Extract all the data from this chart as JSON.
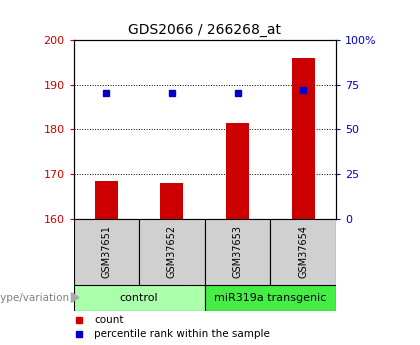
{
  "title": "GDS2066 / 266268_at",
  "samples": [
    "GSM37651",
    "GSM37652",
    "GSM37653",
    "GSM37654"
  ],
  "bar_values": [
    168.5,
    168.0,
    181.5,
    196.0
  ],
  "percentile_values": [
    70,
    70,
    70,
    72
  ],
  "ylim_left": [
    160,
    200
  ],
  "ylim_right": [
    0,
    100
  ],
  "yticks_left": [
    160,
    170,
    180,
    190,
    200
  ],
  "yticks_right": [
    0,
    25,
    50,
    75,
    100
  ],
  "ytick_labels_right": [
    "0",
    "25",
    "50",
    "75",
    "100%"
  ],
  "bar_color": "#cc0000",
  "percentile_color": "#0000cc",
  "bar_width": 0.35,
  "groups": [
    {
      "label": "control",
      "color": "#aaffaa",
      "indices": [
        0,
        1
      ]
    },
    {
      "label": "miR319a transgenic",
      "color": "#44ee44",
      "indices": [
        2,
        3
      ]
    }
  ],
  "genotype_label": "genotype/variation",
  "legend_count_label": "count",
  "legend_pct_label": "percentile rank within the sample",
  "bg_color": "#ffffff",
  "plot_bg": "#ffffff",
  "left_tick_color": "#cc0000",
  "right_tick_color": "#0000cc",
  "title_fontsize": 10,
  "tick_fontsize": 8,
  "sample_fontsize": 7,
  "group_fontsize": 8,
  "legend_fontsize": 7.5,
  "genotype_fontsize": 7.5,
  "sample_box_color": "#d0d0d0",
  "grid_linestyle": ":",
  "grid_color": "#000000",
  "grid_linewidth": 0.7,
  "spine_linewidth": 0.8
}
